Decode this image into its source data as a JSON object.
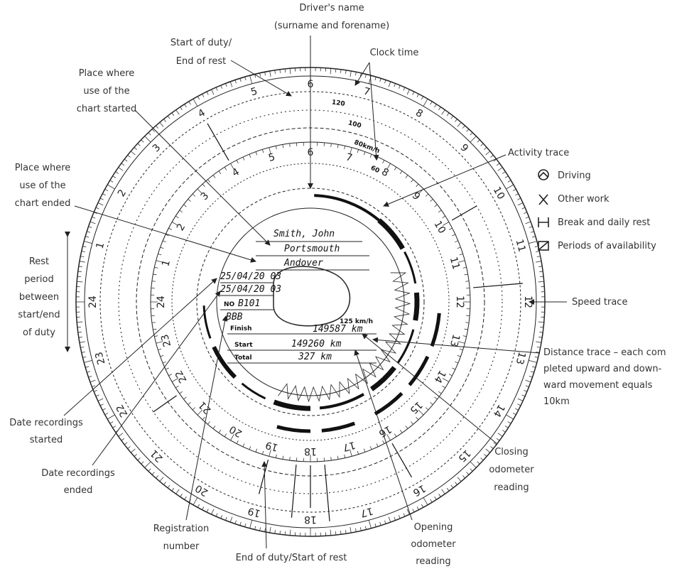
{
  "labels": {
    "drivers_name": [
      "Driver's name",
      "(surname and forename)"
    ],
    "clock_time": [
      "Clock time"
    ],
    "start_of_duty": [
      "Start of duty/",
      "End of rest"
    ],
    "place_started": [
      "Place where",
      "use of the",
      "chart started"
    ],
    "place_ended": [
      "Place where",
      "use of the",
      "chart ended"
    ],
    "activity_trace": [
      "Activity trace"
    ],
    "rest_period": [
      "Rest",
      "period",
      "between",
      "start/end",
      "of duty"
    ],
    "speed_trace": [
      "Speed trace"
    ],
    "distance_trace": [
      "Distance trace – each com",
      "pleted upward and down-",
      "ward movement equals",
      "10km"
    ],
    "date_started": [
      "Date recordings",
      "started"
    ],
    "date_ended": [
      "Date recordings",
      "ended"
    ],
    "closing_odometer": [
      "Closing",
      "odometer",
      "reading"
    ],
    "registration": [
      "Registration",
      "number"
    ],
    "end_of_duty": [
      "End of duty/Start of rest"
    ],
    "opening_odometer": [
      "Opening",
      "odometer",
      "reading"
    ]
  },
  "legend": [
    "Driving",
    "Other work",
    "Break and daily rest",
    "Periods of availability"
  ],
  "chart_entries": {
    "driver": "Smith, John",
    "place_started": "Portsmouth",
    "place_ended": "Andover",
    "date_started": "25/04/20 03",
    "date_ended": "25/04/20 03",
    "reg_prefix": "NO",
    "reg": "B101",
    "vehicle": "BBB",
    "max_speed": "125 km/h",
    "finish_label": "Finish",
    "finish": "149587 km",
    "start_label": "Start",
    "start": "149260 km",
    "total_label": "Total",
    "total": "327 km"
  },
  "dial": {
    "hours": [
      "1",
      "2",
      "3",
      "4",
      "5",
      "6",
      "7",
      "8",
      "9",
      "10",
      "11",
      "12",
      "13",
      "14",
      "15",
      "16",
      "17",
      "18",
      "19",
      "20",
      "21",
      "22",
      "23",
      "24"
    ],
    "speed_labels": [
      "120",
      "100",
      "80km/h",
      "60"
    ]
  }
}
